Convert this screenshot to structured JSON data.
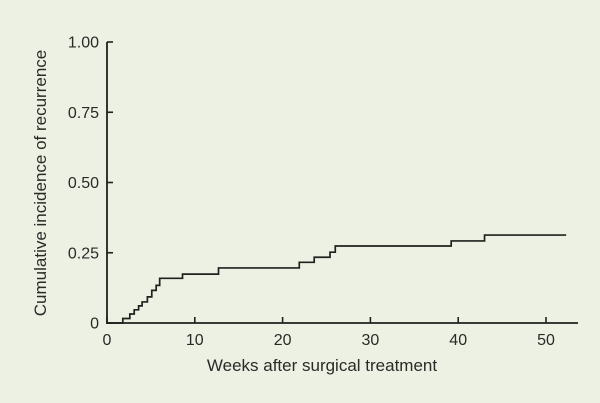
{
  "chart_data": {
    "type": "line",
    "subtype": "step-post",
    "title": "",
    "xlabel": "Weeks after surgical treatment",
    "ylabel": "Cumulative incidence of recurrence",
    "xlim": [
      0,
      53.7
    ],
    "ylim": [
      0,
      1.0
    ],
    "x_ticks": [
      0,
      10,
      20,
      30,
      40,
      50
    ],
    "x_tick_labels": [
      "0",
      "10",
      "20",
      "30",
      "40",
      "50"
    ],
    "y_ticks": [
      0,
      0.25,
      0.5,
      0.75,
      1.0
    ],
    "y_tick_labels": [
      "0",
      "0.25",
      "0.50",
      "0.75",
      "1.00"
    ],
    "grid": false,
    "legend": "none",
    "series": [
      {
        "name": "Cumulative incidence of recurrence",
        "start": {
          "x": 0,
          "y": 0
        },
        "end_x": 52.3,
        "steps": [
          [
            1.8,
            0.016
          ],
          [
            2.6,
            0.032
          ],
          [
            3.1,
            0.047
          ],
          [
            3.6,
            0.061
          ],
          [
            4.0,
            0.075
          ],
          [
            4.6,
            0.093
          ],
          [
            5.1,
            0.116
          ],
          [
            5.6,
            0.134
          ],
          [
            6.0,
            0.159
          ],
          [
            8.6,
            0.174
          ],
          [
            12.7,
            0.196
          ],
          [
            21.9,
            0.216
          ],
          [
            23.6,
            0.234
          ],
          [
            25.4,
            0.252
          ],
          [
            26.0,
            0.274
          ],
          [
            39.2,
            0.292
          ],
          [
            43.0,
            0.313
          ]
        ]
      }
    ],
    "colors": {
      "background": "#edf1e4",
      "line": "#20201e",
      "text": "#2a2a27"
    }
  }
}
